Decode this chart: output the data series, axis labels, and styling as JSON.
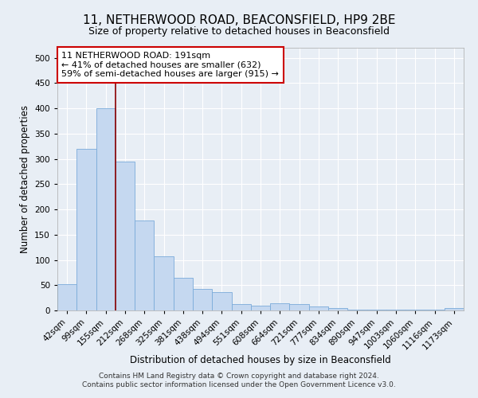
{
  "title": "11, NETHERWOOD ROAD, BEACONSFIELD, HP9 2BE",
  "subtitle": "Size of property relative to detached houses in Beaconsfield",
  "xlabel": "Distribution of detached houses by size in Beaconsfield",
  "ylabel": "Number of detached properties",
  "footer_line1": "Contains HM Land Registry data © Crown copyright and database right 2024.",
  "footer_line2": "Contains public sector information licensed under the Open Government Licence v3.0.",
  "categories": [
    "42sqm",
    "99sqm",
    "155sqm",
    "212sqm",
    "268sqm",
    "325sqm",
    "381sqm",
    "438sqm",
    "494sqm",
    "551sqm",
    "608sqm",
    "664sqm",
    "721sqm",
    "777sqm",
    "834sqm",
    "890sqm",
    "947sqm",
    "1003sqm",
    "1060sqm",
    "1116sqm",
    "1173sqm"
  ],
  "values": [
    52,
    320,
    400,
    295,
    178,
    107,
    64,
    42,
    37,
    12,
    10,
    14,
    12,
    8,
    5,
    2,
    1,
    1,
    1,
    1,
    5
  ],
  "bar_color": "#c5d8f0",
  "bar_edge_color": "#7aabda",
  "vline_x_idx": 2,
  "vline_color": "#8b0000",
  "annotation_text": "11 NETHERWOOD ROAD: 191sqm\n← 41% of detached houses are smaller (632)\n59% of semi-detached houses are larger (915) →",
  "annotation_box_color": "#ffffff",
  "annotation_box_edge_color": "#cc0000",
  "ylim": [
    0,
    520
  ],
  "yticks": [
    0,
    50,
    100,
    150,
    200,
    250,
    300,
    350,
    400,
    450,
    500
  ],
  "background_color": "#e8eef5",
  "plot_background_color": "#e8eef5",
  "title_fontsize": 11,
  "subtitle_fontsize": 9,
  "xlabel_fontsize": 8.5,
  "ylabel_fontsize": 8.5,
  "tick_fontsize": 7.5,
  "annotation_fontsize": 8
}
